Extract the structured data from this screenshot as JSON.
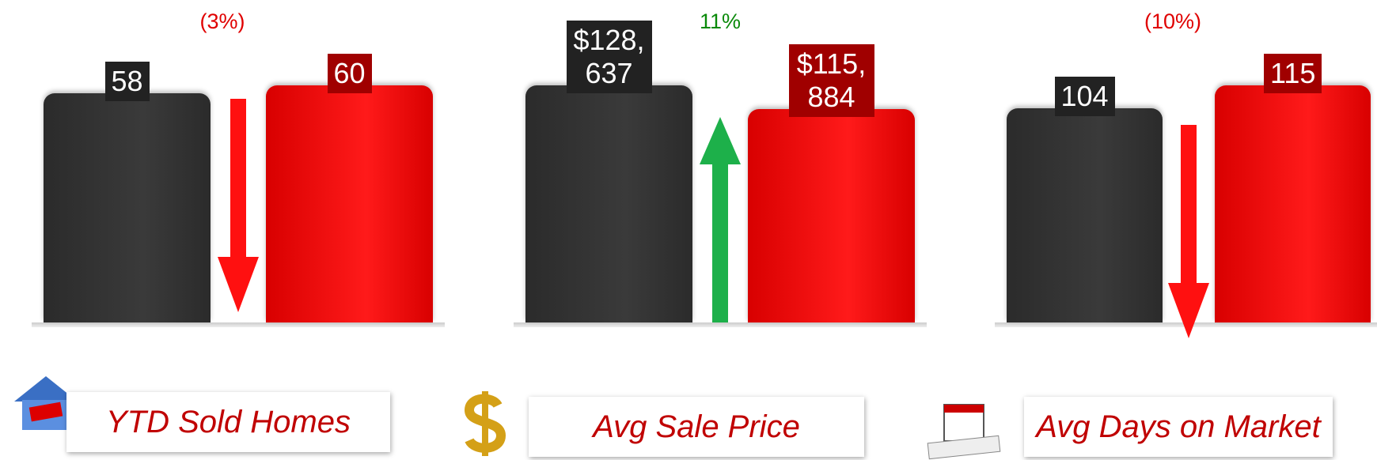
{
  "chart_data": [
    {
      "type": "bar",
      "values": [
        58,
        60
      ],
      "value_labels": [
        "58",
        "60"
      ],
      "colors": [
        "#2b2b2b",
        "#d80000"
      ],
      "change_label": "(3%)",
      "change_color": "#e00000",
      "arrow": "down",
      "caption": "YTD Sold Homes"
    },
    {
      "type": "bar",
      "values": [
        128637,
        115884
      ],
      "value_labels": [
        "$128,637",
        "$115,884"
      ],
      "colors": [
        "#2b2b2b",
        "#d80000"
      ],
      "change_label": "11%",
      "change_color": "#0a8a0a",
      "arrow": "up",
      "caption": "Avg Sale Price"
    },
    {
      "type": "bar",
      "values": [
        104,
        115
      ],
      "value_labels": [
        "104",
        "115"
      ],
      "colors": [
        "#2b2b2b",
        "#d80000"
      ],
      "change_label": "(10%)",
      "change_color": "#e00000",
      "arrow": "down",
      "caption": "Avg Days on Market"
    }
  ]
}
